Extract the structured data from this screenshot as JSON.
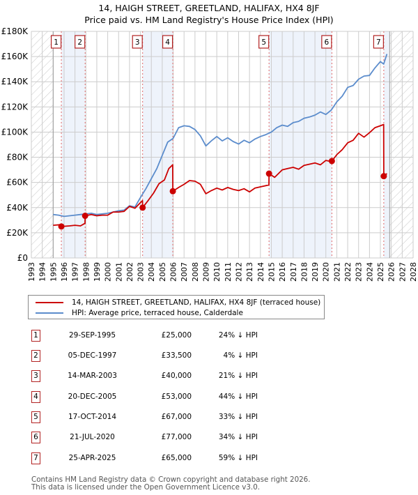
{
  "header": {
    "title": "14, HAIGH STREET, GREETLAND, HALIFAX, HX4 8JF",
    "subtitle": "Price paid vs. HM Land Registry's House Price Index (HPI)"
  },
  "colors": {
    "price_paid": "#cc0000",
    "hpi": "#5b8ccc",
    "marker_border": "#b22222",
    "shade": "#eef3fb",
    "grid": "#cccccc"
  },
  "legend": {
    "items": [
      {
        "label": "14, HAIGH STREET, GREETLAND, HALIFAX, HX4 8JF (terraced house)",
        "color": "#cc0000"
      },
      {
        "label": "HPI: Average price, terraced house, Calderdale",
        "color": "#5b8ccc"
      }
    ]
  },
  "transactions": [
    {
      "num": "1",
      "date": "29-SEP-1995",
      "price": "£25,000",
      "hpi": "24% ↓ HPI"
    },
    {
      "num": "2",
      "date": "05-DEC-1997",
      "price": "£33,500",
      "hpi": "4% ↓ HPI"
    },
    {
      "num": "3",
      "date": "14-MAR-2003",
      "price": "£40,000",
      "hpi": "21% ↓ HPI"
    },
    {
      "num": "4",
      "date": "20-DEC-2005",
      "price": "£53,000",
      "hpi": "44% ↓ HPI"
    },
    {
      "num": "5",
      "date": "17-OCT-2014",
      "price": "£67,000",
      "hpi": "33% ↓ HPI"
    },
    {
      "num": "6",
      "date": "21-JUL-2020",
      "price": "£77,000",
      "hpi": "34% ↓ HPI"
    },
    {
      "num": "7",
      "date": "25-APR-2025",
      "price": "£65,000",
      "hpi": "59% ↓ HPI"
    }
  ],
  "footer": {
    "line1": "Contains HM Land Registry data © Crown copyright and database right 2026.",
    "line2": "This data is licensed under the Open Government Licence v3.0."
  },
  "chart_data": {
    "type": "line",
    "title": "14, HAIGH STREET, GREETLAND, HALIFAX, HX4 8JF — Price paid vs. HM Land Registry's House Price Index (HPI)",
    "xlabel": "",
    "ylabel": "",
    "xlim": [
      1993,
      2028
    ],
    "ylim": [
      0,
      180000
    ],
    "grid": true,
    "legend_position": "below chart",
    "x_ticks": [
      "1993",
      "1994",
      "1995",
      "1996",
      "1997",
      "1998",
      "1999",
      "2000",
      "2001",
      "2002",
      "2003",
      "2004",
      "2005",
      "2006",
      "2007",
      "2008",
      "2009",
      "2010",
      "2011",
      "2012",
      "2013",
      "2014",
      "2015",
      "2016",
      "2017",
      "2018",
      "2019",
      "2020",
      "2021",
      "2022",
      "2023",
      "2024",
      "2025",
      "2026",
      "2027",
      "2028"
    ],
    "y_ticks": [
      "£0",
      "£20K",
      "£40K",
      "£60K",
      "£80K",
      "£100K",
      "£120K",
      "£140K",
      "£160K",
      "£180K"
    ],
    "series": [
      {
        "name": "14, HAIGH STREET, GREETLAND, HALIFAX, HX4 8JF (terraced house)",
        "x": [
          1995.0,
          1995.74,
          1995.75,
          1996.5,
          1997.0,
          1997.5,
          1997.92,
          1997.93,
          1998.5,
          1999.0,
          1999.5,
          2000.0,
          2000.5,
          2001.0,
          2001.5,
          2002.0,
          2002.5,
          2003.0,
          2003.19,
          2003.2,
          2003.7,
          2004.2,
          2004.7,
          2005.2,
          2005.6,
          2005.96,
          2005.97,
          2006.5,
          2007.0,
          2007.5,
          2008.0,
          2008.5,
          2009.0,
          2009.5,
          2010.0,
          2010.5,
          2011.0,
          2011.5,
          2012.0,
          2012.5,
          2013.0,
          2013.5,
          2014.0,
          2014.78,
          2014.79,
          2015.3,
          2016.0,
          2016.5,
          2017.0,
          2017.5,
          2018.0,
          2018.5,
          2019.0,
          2019.5,
          2020.0,
          2020.54,
          2020.55,
          2021.0,
          2021.5,
          2022.0,
          2022.5,
          2023.0,
          2023.5,
          2024.0,
          2024.5,
          2025.0,
          2025.3,
          2025.31,
          2025.6
        ],
        "values": [
          26000,
          26500,
          25000,
          25500,
          26000,
          25500,
          27500,
          33500,
          34500,
          33500,
          34000,
          34000,
          36500,
          36500,
          37000,
          41000,
          39500,
          44000,
          45500,
          40000,
          45500,
          51500,
          59000,
          62000,
          71000,
          74000,
          53000,
          56000,
          58500,
          61500,
          61000,
          58500,
          51000,
          53500,
          55500,
          54000,
          56000,
          54500,
          53500,
          55000,
          52500,
          55500,
          56500,
          58000,
          67000,
          64000,
          70000,
          71000,
          72000,
          70500,
          73500,
          74500,
          75500,
          74000,
          77500,
          76500,
          77000,
          82000,
          86000,
          91500,
          93500,
          99000,
          96000,
          99500,
          103500,
          105000,
          106000,
          65000,
          67000
        ]
      },
      {
        "name": "HPI: Average price, terraced house, Calderdale",
        "x": [
          1995.0,
          1995.5,
          1996.0,
          1996.5,
          1997.0,
          1997.5,
          1998.0,
          1998.5,
          1999.0,
          1999.5,
          2000.0,
          2000.5,
          2001.0,
          2001.5,
          2002.0,
          2002.5,
          2003.0,
          2003.5,
          2004.0,
          2004.5,
          2005.0,
          2005.5,
          2006.0,
          2006.5,
          2007.0,
          2007.5,
          2008.0,
          2008.5,
          2009.0,
          2009.5,
          2010.0,
          2010.5,
          2011.0,
          2011.5,
          2012.0,
          2012.5,
          2013.0,
          2013.5,
          2014.0,
          2014.5,
          2015.0,
          2015.5,
          2016.0,
          2016.5,
          2017.0,
          2017.5,
          2018.0,
          2018.5,
          2019.0,
          2019.5,
          2020.0,
          2020.5,
          2021.0,
          2021.5,
          2022.0,
          2022.5,
          2023.0,
          2023.5,
          2024.0,
          2024.5,
          2025.0,
          2025.3,
          2025.6
        ],
        "values": [
          34500,
          34000,
          33000,
          33500,
          34000,
          34500,
          35000,
          35500,
          34500,
          35000,
          35500,
          36500,
          37500,
          38000,
          41500,
          40500,
          48000,
          55000,
          63000,
          71000,
          81500,
          92000,
          95000,
          103500,
          105000,
          104500,
          102000,
          97000,
          89000,
          93000,
          96500,
          93000,
          95500,
          92500,
          90500,
          93500,
          91500,
          94500,
          96500,
          98000,
          100000,
          103500,
          105500,
          104500,
          107500,
          108500,
          111000,
          112000,
          113500,
          116000,
          114000,
          117500,
          124000,
          128500,
          135500,
          137000,
          142000,
          144500,
          145000,
          151000,
          156000,
          154000,
          162000
        ]
      }
    ],
    "sale_markers": [
      {
        "num": 1,
        "x": 1995.75,
        "value": 25000
      },
      {
        "num": 2,
        "x": 1997.93,
        "value": 33500
      },
      {
        "num": 3,
        "x": 2003.2,
        "value": 40000
      },
      {
        "num": 4,
        "x": 2005.97,
        "value": 53000
      },
      {
        "num": 5,
        "x": 2014.79,
        "value": 67000
      },
      {
        "num": 6,
        "x": 2020.55,
        "value": 77000
      },
      {
        "num": 7,
        "x": 2025.31,
        "value": 65000
      }
    ],
    "shaded_ranges": [
      [
        1995.75,
        1997.93
      ],
      [
        2003.2,
        2005.97
      ],
      [
        2014.79,
        2020.55
      ],
      [
        2025.31,
        2025.85
      ]
    ],
    "hatched_ranges": [
      [
        1993,
        1995
      ],
      [
        2025.85,
        2028
      ]
    ]
  }
}
